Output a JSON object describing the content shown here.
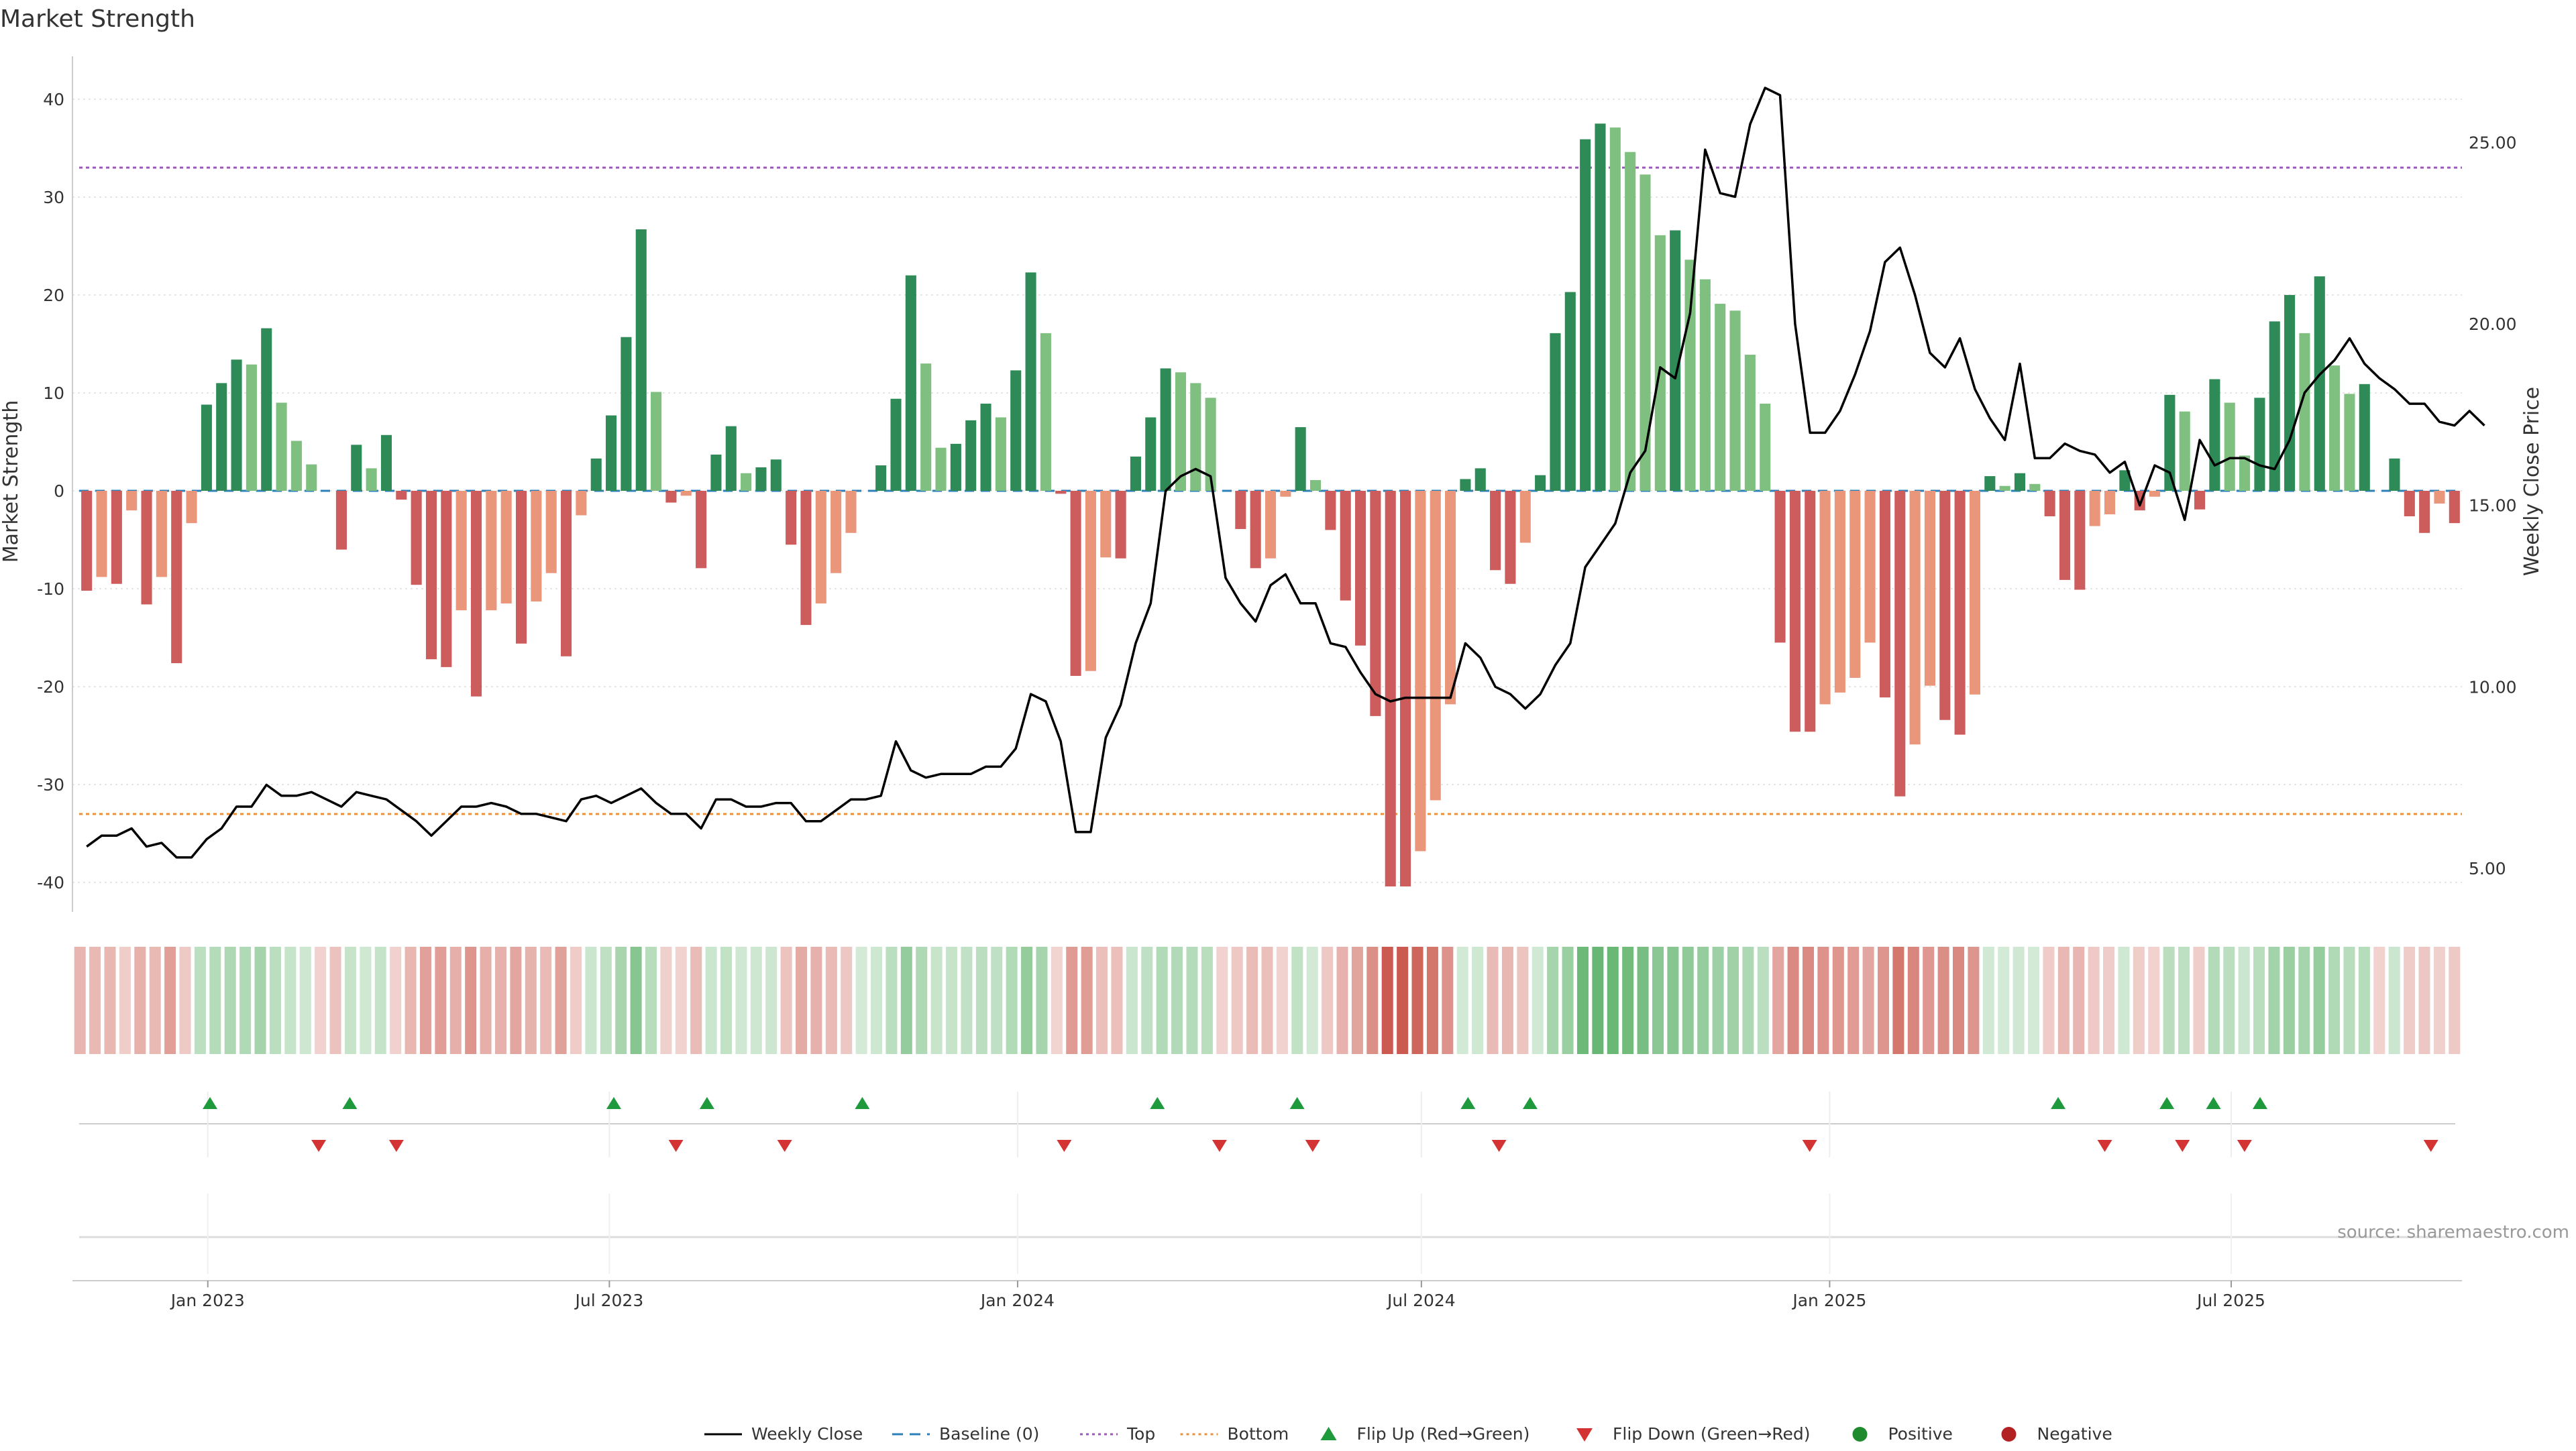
{
  "chart_data": {
    "type": "bar",
    "title": "Market Strength",
    "ylabel_left": "Market Strength",
    "ylabel_right": "Weekly Close Price",
    "ylim_left": [
      -43,
      43
    ],
    "ylim_right": [
      3.8,
      27
    ],
    "yticks_left": [
      40,
      30,
      20,
      10,
      0,
      -10,
      -20,
      -30,
      -40
    ],
    "yticks_right": [
      "25.00",
      "20.00",
      "15.00",
      "10.00",
      "5.00"
    ],
    "x_start": "2022-11-01",
    "x_end": "2025-10-13",
    "x_ticks": [
      {
        "date": "2023-01-01",
        "label": "Jan 2023"
      },
      {
        "date": "2023-07-01",
        "label": "Jul 2023"
      },
      {
        "date": "2024-01-01",
        "label": "Jan 2024"
      },
      {
        "date": "2024-07-01",
        "label": "Jul 2024"
      },
      {
        "date": "2025-01-01",
        "label": "Jan 2025"
      },
      {
        "date": "2025-07-01",
        "label": "Jul 2025"
      }
    ],
    "top_level": 33,
    "bottom_level": -33,
    "grid": true,
    "legend_position": "bottom-center",
    "series": [
      {
        "name": "Market Strength (weekly)",
        "values": [
          -10.2,
          -8.8,
          -9.5,
          -2.0,
          -11.6,
          -8.8,
          -17.6,
          -3.3,
          8.8,
          11.0,
          13.4,
          12.9,
          16.6,
          9.0,
          5.1,
          2.7,
          0.0,
          -6.0,
          4.7,
          2.3,
          5.7,
          -0.9,
          -9.6,
          -17.2,
          -18.0,
          -12.2,
          -21.0,
          -12.2,
          -11.5,
          -15.6,
          -11.3,
          -8.4,
          -16.9,
          -2.5,
          3.3,
          7.7,
          15.7,
          26.7,
          10.1,
          -1.2,
          -0.5,
          -7.9,
          3.7,
          6.6,
          1.8,
          2.4,
          3.2,
          -5.5,
          -13.7,
          -11.5,
          -8.4,
          -4.3,
          0.0,
          2.6,
          9.4,
          22.0,
          13.0,
          4.4,
          4.8,
          7.2,
          8.9,
          7.5,
          12.3,
          22.3,
          16.1,
          -0.3,
          -18.9,
          -18.4,
          -6.8,
          -6.9,
          3.5,
          7.5,
          12.5,
          12.1,
          11.0,
          9.5,
          0.0,
          -3.9,
          -7.9,
          -6.9,
          -0.6,
          6.5,
          1.1,
          -4.0,
          -11.2,
          -15.8,
          -23.0,
          -40.4,
          -40.4,
          -36.8,
          -31.6,
          -21.8,
          1.2,
          2.3,
          -8.1,
          -9.5,
          -5.3,
          1.6,
          16.1,
          20.3,
          35.9,
          37.5,
          37.1,
          34.6,
          32.3,
          26.1,
          26.6,
          23.6,
          21.6,
          19.1,
          18.4,
          13.9,
          8.9,
          -15.5,
          -24.6,
          -24.6,
          -21.8,
          -20.6,
          -19.1,
          -15.5,
          -21.1,
          -31.2,
          -25.9,
          -19.9,
          -23.4,
          -24.9,
          -20.8,
          1.5,
          0.5,
          1.8,
          0.7,
          -2.6,
          -9.1,
          -10.1,
          -3.6,
          -2.4,
          2.1,
          -2.0,
          -0.6,
          9.8,
          8.1,
          -1.9,
          11.4,
          9.0,
          3.6,
          9.5,
          17.3,
          20.0,
          16.1,
          21.9,
          12.8,
          9.9,
          10.9,
          0.0,
          3.3,
          -2.6,
          -4.3,
          -1.3,
          -3.3
        ]
      },
      {
        "name": "Weekly Close",
        "values": [
          5.6,
          5.9,
          5.9,
          6.1,
          5.6,
          5.7,
          5.3,
          5.3,
          5.8,
          6.1,
          6.7,
          6.7,
          7.3,
          7.0,
          7.0,
          7.1,
          6.9,
          6.7,
          7.1,
          7.0,
          6.9,
          6.6,
          6.3,
          5.9,
          6.3,
          6.7,
          6.7,
          6.8,
          6.7,
          6.5,
          6.5,
          6.4,
          6.3,
          6.9,
          7.0,
          6.8,
          7.0,
          7.2,
          6.8,
          6.5,
          6.5,
          6.1,
          6.9,
          6.9,
          6.7,
          6.7,
          6.8,
          6.8,
          6.3,
          6.3,
          6.6,
          6.9,
          6.9,
          7.0,
          8.5,
          7.7,
          7.5,
          7.6,
          7.6,
          7.6,
          7.8,
          7.8,
          8.3,
          9.8,
          9.6,
          8.5,
          6.0,
          6.0,
          8.6,
          9.5,
          11.2,
          12.3,
          15.4,
          15.8,
          16.0,
          15.8,
          13.0,
          12.3,
          11.8,
          12.8,
          13.1,
          12.3,
          12.3,
          11.2,
          11.1,
          10.4,
          9.8,
          9.6,
          9.7,
          9.7,
          9.7,
          9.7,
          11.2,
          10.8,
          10.0,
          9.8,
          9.4,
          9.8,
          10.6,
          11.2,
          13.3,
          13.9,
          14.5,
          15.9,
          16.5,
          18.8,
          18.5,
          20.3,
          24.8,
          23.6,
          23.5,
          25.5,
          26.5,
          26.3,
          20.0,
          17.0,
          17.0,
          17.6,
          18.6,
          19.8,
          21.7,
          22.1,
          20.8,
          19.2,
          18.8,
          19.6,
          18.2,
          17.4,
          16.8,
          18.9,
          16.3,
          16.3,
          16.7,
          16.5,
          16.4,
          15.9,
          16.2,
          15.0,
          16.1,
          15.9,
          14.6,
          16.8,
          16.1,
          16.3,
          16.3,
          16.1,
          16.0,
          16.8,
          18.1,
          18.6,
          19.0,
          19.6,
          18.9,
          18.5,
          18.2,
          17.8,
          17.8,
          17.3,
          17.2,
          17.6,
          17.2
        ]
      }
    ],
    "heat_strip": {
      "values": [
        -10.2,
        -8.8,
        -9.5,
        -2.0,
        -11.6,
        -8.8,
        -17.6,
        -3.3,
        8.8,
        11.0,
        13.4,
        12.9,
        16.6,
        9.0,
        5.1,
        2.7,
        -0.4,
        -6.0,
        4.7,
        2.3,
        5.7,
        -0.9,
        -9.6,
        -17.2,
        -18.0,
        -12.2,
        -21.0,
        -12.2,
        -11.5,
        -15.6,
        -11.3,
        -8.4,
        -16.9,
        -2.5,
        3.3,
        7.7,
        15.7,
        26.7,
        10.1,
        -1.2,
        -0.5,
        -7.9,
        3.7,
        6.6,
        1.8,
        2.4,
        3.2,
        -5.5,
        -13.7,
        -11.5,
        -8.4,
        -4.3,
        0.4,
        2.6,
        9.4,
        22.0,
        13.0,
        4.4,
        4.8,
        7.2,
        8.9,
        7.5,
        12.3,
        22.3,
        16.1,
        -0.3,
        -18.9,
        -18.4,
        -6.8,
        -6.9,
        3.5,
        7.5,
        12.5,
        12.1,
        11.0,
        9.5,
        -0.4,
        -3.9,
        -7.9,
        -6.9,
        -0.6,
        6.5,
        1.1,
        -4.0,
        -11.2,
        -15.8,
        -23.0,
        -40.4,
        -40.4,
        -36.8,
        -31.6,
        -21.8,
        1.2,
        2.3,
        -8.1,
        -9.5,
        -5.3,
        1.6,
        16.1,
        20.3,
        35.9,
        37.5,
        37.1,
        34.6,
        32.3,
        26.1,
        26.6,
        23.6,
        21.6,
        19.1,
        18.4,
        13.9,
        8.9,
        -15.5,
        -24.6,
        -24.6,
        -21.8,
        -20.6,
        -19.1,
        -15.5,
        -21.1,
        -31.2,
        -25.9,
        -19.9,
        -23.4,
        -24.9,
        -20.8,
        1.5,
        0.5,
        1.8,
        0.7,
        -2.6,
        -9.1,
        -10.1,
        -3.6,
        -2.4,
        2.1,
        -2.0,
        -0.6,
        9.8,
        8.1,
        -1.9,
        11.4,
        9.0,
        3.6,
        9.5,
        17.3,
        20.0,
        16.1,
        21.9,
        12.8,
        9.9,
        10.9,
        -0.4,
        3.3,
        -2.6,
        -4.3,
        -1.3,
        -3.3
      ]
    },
    "flip_up_dates": [
      "2023-01-02",
      "2023-03-06",
      "2023-07-03",
      "2023-08-14",
      "2023-10-23",
      "2024-03-04",
      "2024-05-06",
      "2024-07-22",
      "2024-08-19",
      "2025-04-14",
      "2025-06-02",
      "2025-06-23",
      "2025-07-14"
    ],
    "flip_down_dates": [
      "2023-02-20",
      "2023-03-27",
      "2023-07-31",
      "2023-09-18",
      "2024-01-22",
      "2024-04-01",
      "2024-05-13",
      "2024-08-05",
      "2024-12-23",
      "2025-05-05",
      "2025-06-09",
      "2025-07-07",
      "2025-09-29"
    ],
    "source": "source: sharemaestro.com",
    "legend": [
      {
        "label": "Weekly Close",
        "symbol": "line-solid",
        "color": "#000000"
      },
      {
        "label": "Baseline (0)",
        "symbol": "line-dashed",
        "color": "#2c7fb8"
      },
      {
        "label": "Top",
        "symbol": "line-dotted",
        "color": "#9b59b6"
      },
      {
        "label": "Bottom",
        "symbol": "line-dotted",
        "color": "#e8913d"
      },
      {
        "label": "Flip Up (Red→Green)",
        "symbol": "triangle-up",
        "color": "#1e9a3c"
      },
      {
        "label": "Flip Down (Green→Red)",
        "symbol": "triangle-down",
        "color": "#d43333"
      },
      {
        "label": "Positive",
        "symbol": "circle",
        "color": "#1f8a2e"
      },
      {
        "label": "Negative",
        "symbol": "circle",
        "color": "#b22222"
      }
    ],
    "colors": {
      "pos_dark": "#2e8b57",
      "pos_light": "#7fc081",
      "neg_dark": "#cd5c5c",
      "neg_light": "#e9967a",
      "close_line": "#000000",
      "baseline": "#2c7fb8",
      "top": "#9b59b6",
      "bottom": "#e8913d",
      "flip_up": "#1e9a3c",
      "flip_down": "#d43333",
      "heat_pos": "#3fa34d",
      "heat_neg": "#c0392b",
      "grid": "#dddddd",
      "axis": "#cccccc"
    }
  }
}
